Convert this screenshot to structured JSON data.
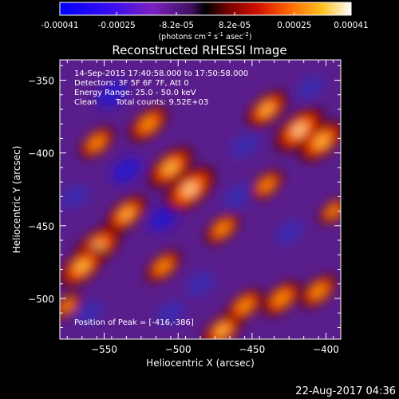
{
  "colorbar": {
    "tick_labels": [
      "-0.00041",
      "-0.00025",
      "-8.2e-05",
      "8.2e-05",
      "0.00025",
      "0.00041"
    ],
    "tick_values": [
      -0.00041,
      -0.00025,
      -8.2e-05,
      8.2e-05,
      0.00025,
      0.00041
    ],
    "range": [
      -0.00041,
      0.00041
    ],
    "units_prefix": "(photons cm",
    "units_sup1": "-2",
    "units_mid1": " s",
    "units_sup2": "-1",
    "units_mid2": " asec",
    "units_sup3": "-2",
    "units_suffix": ")"
  },
  "chart_data": {
    "type": "heatmap",
    "title": "Reconstructed RHESSI Image",
    "xlabel": "Heliocentric X (arcsec)",
    "ylabel": "Heliocentric Y (arcsec)",
    "xlim": [
      -580,
      -390
    ],
    "ylim": [
      -528,
      -336
    ],
    "x_ticks": [
      -550,
      -500,
      -450,
      -400
    ],
    "x_tick_labels": [
      "−550",
      "−500",
      "−450",
      "−400"
    ],
    "y_ticks": [
      -350,
      -400,
      -450,
      -500
    ],
    "y_tick_labels": [
      "−350",
      "−400",
      "−450",
      "−500"
    ],
    "colormap": "RHESSI red-temperature (blue-purple negative, black zero, red-orange-yellow-white positive)",
    "peak_position": [
      -416,
      -386
    ],
    "hot_spots": [
      {
        "x": -555,
        "y": -465,
        "level": 0.95
      },
      {
        "x": -565,
        "y": -478,
        "level": 0.85
      },
      {
        "x": -492,
        "y": -425,
        "level": 1.0
      },
      {
        "x": -505,
        "y": -410,
        "level": 0.85
      },
      {
        "x": -418,
        "y": -384,
        "level": 0.95
      },
      {
        "x": -403,
        "y": -392,
        "level": 0.85
      },
      {
        "x": -440,
        "y": -370,
        "level": 0.75
      },
      {
        "x": -520,
        "y": -380,
        "level": 0.7
      },
      {
        "x": -535,
        "y": -442,
        "level": 0.75
      },
      {
        "x": -470,
        "y": -522,
        "level": 0.75
      },
      {
        "x": -455,
        "y": -505,
        "level": 0.65
      },
      {
        "x": -430,
        "y": -500,
        "level": 0.7
      },
      {
        "x": -510,
        "y": -478,
        "level": 0.6
      },
      {
        "x": -555,
        "y": -393,
        "level": 0.6
      },
      {
        "x": -470,
        "y": -452,
        "level": 0.6
      },
      {
        "x": -405,
        "y": -495,
        "level": 0.65
      },
      {
        "x": -440,
        "y": -422,
        "level": 0.55
      },
      {
        "x": -575,
        "y": -505,
        "level": 0.45
      },
      {
        "x": -395,
        "y": -440,
        "level": 0.45
      }
    ],
    "cold_spots": [
      {
        "x": -545,
        "y": -360,
        "level": -0.75
      },
      {
        "x": -535,
        "y": -412,
        "level": -0.7
      },
      {
        "x": -510,
        "y": -445,
        "level": -0.7
      },
      {
        "x": -485,
        "y": -490,
        "level": -0.6
      },
      {
        "x": -460,
        "y": -430,
        "level": -0.6
      },
      {
        "x": -455,
        "y": -395,
        "level": -0.55
      },
      {
        "x": -505,
        "y": -510,
        "level": -0.55
      },
      {
        "x": -425,
        "y": -455,
        "level": -0.55
      },
      {
        "x": -560,
        "y": -510,
        "level": -0.5
      },
      {
        "x": -410,
        "y": -355,
        "level": -0.5
      },
      {
        "x": -570,
        "y": -430,
        "level": -0.5
      }
    ]
  },
  "annotations": {
    "time": "14-Sep-2015 17:40:58.000 to 17:50:58.000",
    "detectors": "Detectors: 3F 5F 6F 7F, Att 0",
    "energy": "Energy Range: 25.0 - 50.0 keV",
    "algorithm": "Clean",
    "counts": "Total counts: 9.52E+03",
    "peak": "Position of Peak = [-416,-386]"
  },
  "footer": {
    "date": "22-Aug-2017 04:36"
  }
}
